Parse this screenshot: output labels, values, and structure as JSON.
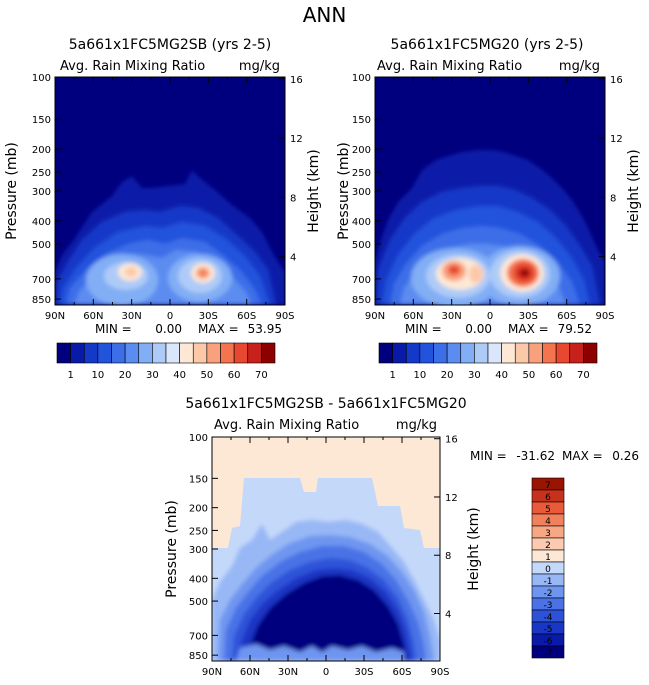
{
  "figure_title": "ANN",
  "colors": {
    "rain_scale": [
      "#00007f",
      "#0a1aa8",
      "#1438c8",
      "#2253dc",
      "#3c6ee8",
      "#5b8cf0",
      "#82aef5",
      "#aecbf8",
      "#d9e6fb",
      "#fde8d6",
      "#fcc9a8",
      "#f9a07c",
      "#f47450",
      "#e8482f",
      "#c8201a",
      "#8c0000"
    ],
    "diff_scale": [
      "#00007f",
      "#0a1aa8",
      "#1a36c4",
      "#2d52d8",
      "#4a72e6",
      "#6e95f0",
      "#98b7f5",
      "#c4d8fa",
      "#fde8d6",
      "#fbcab0",
      "#f8a784",
      "#f3805c",
      "#e85a3a",
      "#c8321c",
      "#9a1404"
    ]
  },
  "chart_data": [
    {
      "id": "panel1",
      "type": "contour",
      "title": "5a661x1FC5MG2SB (yrs 2-5)",
      "variable": "Avg. Rain Mixing Ratio",
      "units": "mg/kg",
      "ylabel": "Pressure (mb)",
      "y2label": "Height (km)",
      "x_ticks": [
        "90N",
        "60N",
        "30N",
        "0",
        "30S",
        "60S",
        "90S"
      ],
      "p_ticks": [
        "100",
        "150",
        "200",
        "250",
        "300",
        "400",
        "500",
        "700",
        "850"
      ],
      "h_ticks": [
        "16",
        "12",
        "8",
        "4"
      ],
      "min_label": "MIN =",
      "min_value": "0.00",
      "max_label": "MAX =",
      "max_value": "53.95",
      "maxima": [
        {
          "lat": 25,
          "p": 700,
          "value": 53.95
        },
        {
          "lat": -25,
          "p": 700,
          "value": 45
        }
      ]
    },
    {
      "id": "panel2",
      "type": "contour",
      "title": "5a661x1FC5MG20 (yrs 2-5)",
      "variable": "Avg. Rain Mixing Ratio",
      "units": "mg/kg",
      "ylabel": "Pressure (mb)",
      "y2label": "Height (km)",
      "x_ticks": [
        "90N",
        "60N",
        "30N",
        "0",
        "30S",
        "60S",
        "90S"
      ],
      "p_ticks": [
        "100",
        "150",
        "200",
        "250",
        "300",
        "400",
        "500",
        "700",
        "850"
      ],
      "h_ticks": [
        "16",
        "12",
        "8",
        "4"
      ],
      "min_label": "MIN =",
      "min_value": "0.00",
      "max_label": "MAX =",
      "max_value": "79.52",
      "maxima": [
        {
          "lat": 28,
          "p": 700,
          "value": 60
        },
        {
          "lat": -25,
          "p": 710,
          "value": 79.52
        }
      ]
    },
    {
      "id": "panel3",
      "type": "contour",
      "title": "5a661x1FC5MG2SB - 5a661x1FC5MG20",
      "variable": "Avg. Rain Mixing Ratio",
      "units": "mg/kg",
      "ylabel": "Pressure (mb)",
      "y2label": "Height (km)",
      "x_ticks": [
        "90N",
        "60N",
        "30N",
        "0",
        "30S",
        "60S",
        "90S"
      ],
      "p_ticks": [
        "100",
        "150",
        "200",
        "250",
        "300",
        "400",
        "500",
        "700",
        "850"
      ],
      "h_ticks": [
        "16",
        "12",
        "8",
        "4"
      ],
      "min_label": "MIN =",
      "min_value": "-31.62",
      "max_label": "MAX =",
      "max_value": "0.26"
    }
  ],
  "colorbar_rain": {
    "labels": [
      "1",
      "10",
      "20",
      "30",
      "40",
      "50",
      "60",
      "70"
    ]
  },
  "colorbar_diff": {
    "labels": [
      "7",
      "6",
      "5",
      "4",
      "3",
      "2",
      "1",
      "0",
      "-1",
      "-2",
      "-3",
      "-4",
      "-5",
      "-6",
      "-7"
    ]
  }
}
